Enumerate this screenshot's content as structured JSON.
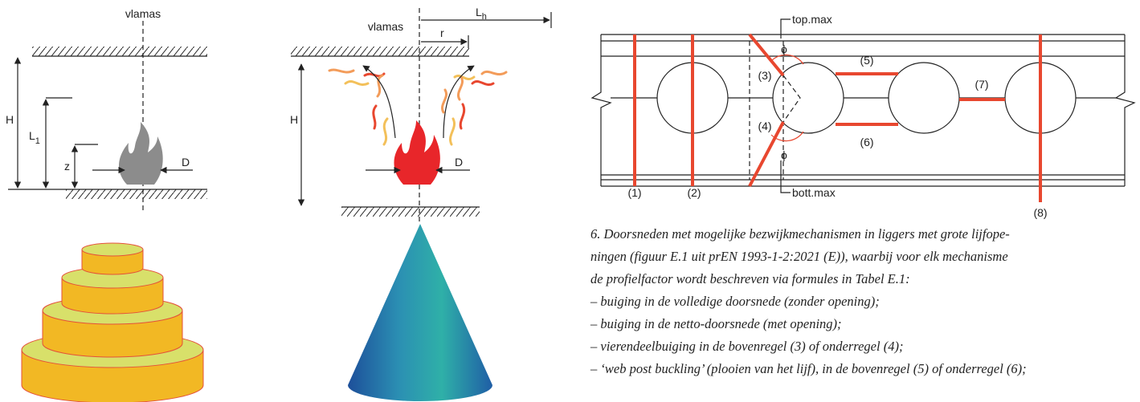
{
  "fire_left": {
    "flame_axis": "vlamas",
    "height": "H",
    "length": "L",
    "length_sub": "1",
    "z": "z",
    "diameter": "D"
  },
  "fire_right": {
    "flame_axis": "vlamas",
    "horizontal_length": "L",
    "horizontal_length_sub": "h",
    "radius": "r",
    "height": "H",
    "diameter": "D"
  },
  "beam": {
    "top_label": "top.max",
    "top_angle": "ϕ",
    "bottom_angle": "ϕ",
    "bottom_label": "bott.max",
    "sections": [
      "(1)",
      "(2)",
      "(3)",
      "(4)",
      "(5)",
      "(6)",
      "(7)",
      "(8)"
    ]
  },
  "caption": {
    "lines": [
      "6. Doorsneden met mogelijke bezwijkmechanismen in liggers met grote lijfope-",
      "ningen (figuur E.1 uit prEN 1993-1-2:2021 (E)), waarbij voor elk mechanisme",
      "de profielfactor wordt beschreven via formules in Tabel E.1:",
      "– buiging in de volledige doorsnede (zonder opening);",
      "– buiging in de netto-doorsnede (met opening);",
      "– vierendeelbuiging in de bovenregel (3) of onderregel (4);",
      "– ‘web post buckling’ (plooien van het lijf), in de bovenregel (5) of onderregel (6);"
    ]
  }
}
